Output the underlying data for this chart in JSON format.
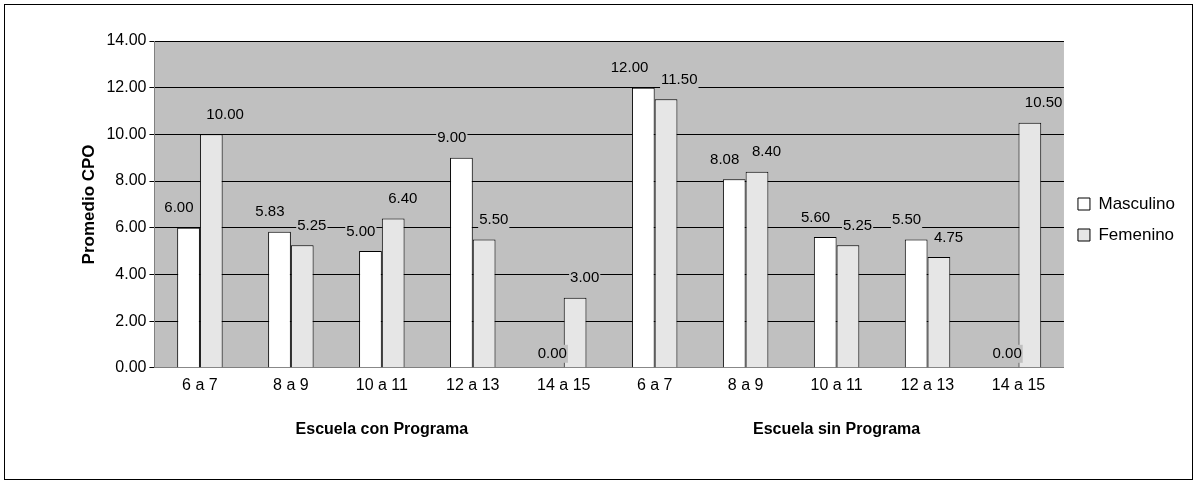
{
  "chart_data": {
    "type": "bar",
    "ylabel": "Promedio CPO",
    "categories": [
      "6 a 7",
      "8 a 9",
      "10 a 11",
      "12 a 13",
      "14 a 15",
      "6 a 7",
      "8 a 9",
      "10 a 11",
      "12 a 13",
      "14 a 15"
    ],
    "series": [
      {
        "name": "Masculino",
        "color": "#ffffff",
        "values": [
          6,
          5.83,
          5,
          9,
          0,
          12,
          8.08,
          5.6,
          5.5,
          0
        ],
        "value_labels": [
          "6.00",
          "5.83",
          "5.00",
          "9.00",
          "0.00",
          "12.00",
          "8.08",
          "5.60",
          "5.50",
          "0.00"
        ]
      },
      {
        "name": "Femenino",
        "color": "#e6e6e6",
        "values": [
          10,
          5.25,
          6.4,
          5.5,
          3,
          11.5,
          8.4,
          5.25,
          4.75,
          10.5
        ],
        "value_labels": [
          "10.00",
          "5.25",
          "6.40",
          "5.50",
          "3.00",
          "11.50",
          "8.40",
          "5.25",
          "4.75",
          "10.50"
        ]
      }
    ],
    "ylim": [
      0,
      14
    ],
    "yticks": [
      {
        "value": 0,
        "label": "0.00"
      },
      {
        "value": 2,
        "label": "2.00"
      },
      {
        "value": 4,
        "label": "4.00"
      },
      {
        "value": 6,
        "label": "6.00"
      },
      {
        "value": 8,
        "label": "8.00"
      },
      {
        "value": 10,
        "label": "10.00"
      },
      {
        "value": 12,
        "label": "12.00"
      },
      {
        "value": 14,
        "label": "14.00"
      }
    ],
    "grid": "y",
    "legend": "right",
    "annotations": [
      "Escuela con Programa",
      "Escuela sin Programa"
    ]
  }
}
